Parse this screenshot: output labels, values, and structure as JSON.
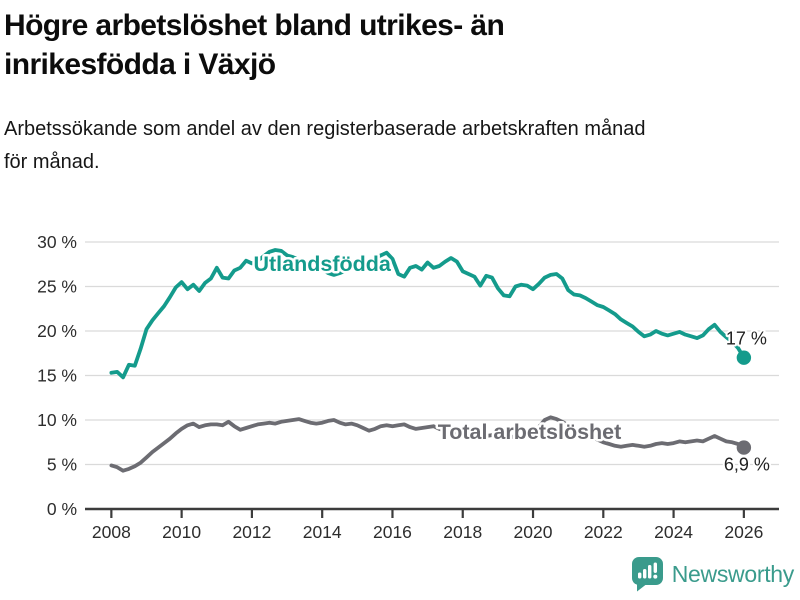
{
  "header": {
    "title_lines": [
      "Högre arbetslöshet bland utrikes- än",
      "inrikesfödda i Växjö"
    ],
    "subtitle_lines": [
      "Arbetssökande som andel av den registerbaserade arbetskraften månad",
      "för månad."
    ]
  },
  "chart_data": {
    "type": "line",
    "title": "Högre arbetslöshet bland utrikes- än inrikesfödda i Växjö",
    "subtitle": "Arbetssökande som andel av den registerbaserade arbetskraften månad för månad.",
    "x_start_year": 2008.0,
    "x_step_years": 0.16667,
    "xlim": [
      2007.25,
      2027.0
    ],
    "ylim": [
      0,
      30
    ],
    "grid": true,
    "x_ticks": [
      {
        "v": 2008,
        "label": "2008"
      },
      {
        "v": 2010,
        "label": "2010"
      },
      {
        "v": 2012,
        "label": "2012"
      },
      {
        "v": 2014,
        "label": "2014"
      },
      {
        "v": 2016,
        "label": "2016"
      },
      {
        "v": 2018,
        "label": "2018"
      },
      {
        "v": 2020,
        "label": "2020"
      },
      {
        "v": 2022,
        "label": "2022"
      },
      {
        "v": 2024,
        "label": "2024"
      },
      {
        "v": 2026,
        "label": "2026"
      }
    ],
    "y_ticks": [
      {
        "v": 0,
        "label": "0 %"
      },
      {
        "v": 5,
        "label": "5 %"
      },
      {
        "v": 10,
        "label": "10 %"
      },
      {
        "v": 15,
        "label": "15 %"
      },
      {
        "v": 20,
        "label": "20 %"
      },
      {
        "v": 25,
        "label": "25 %"
      },
      {
        "v": 30,
        "label": "30 %"
      }
    ],
    "series": [
      {
        "name": "Utlandsfödda",
        "color": "#149b8c",
        "label_anchor": {
          "x": 2014.0,
          "y": 27.4
        },
        "end_label": "17 %",
        "end_label_offset": [
          -18,
          -13
        ],
        "values": [
          15.3,
          15.4,
          14.8,
          16.2,
          16.1,
          18.0,
          20.2,
          21.2,
          22.0,
          22.8,
          23.8,
          24.9,
          25.5,
          24.7,
          25.2,
          24.5,
          25.4,
          25.9,
          27.1,
          26.0,
          25.9,
          26.8,
          27.1,
          27.9,
          27.6,
          27.9,
          28.4,
          28.9,
          29.1,
          29.0,
          28.5,
          28.3,
          28.0,
          27.8,
          27.6,
          27.2,
          27.0,
          26.5,
          26.3,
          26.5,
          26.8,
          27.0,
          27.3,
          27.6,
          27.9,
          28.2,
          28.5,
          28.8,
          28.1,
          26.4,
          26.1,
          27.1,
          27.3,
          26.9,
          27.7,
          27.1,
          27.3,
          27.8,
          28.2,
          27.8,
          26.7,
          26.4,
          26.1,
          25.1,
          26.2,
          26.0,
          24.8,
          24.0,
          23.9,
          25.0,
          25.2,
          25.1,
          24.7,
          25.3,
          26.0,
          26.3,
          26.4,
          25.9,
          24.6,
          24.1,
          24.0,
          23.7,
          23.3,
          22.9,
          22.7,
          22.3,
          21.9,
          21.3,
          20.9,
          20.5,
          19.9,
          19.4,
          19.6,
          20.0,
          19.7,
          19.5,
          19.7,
          19.9,
          19.6,
          19.4,
          19.2,
          19.5,
          20.2,
          20.7,
          19.9,
          19.3,
          18.8,
          18.1,
          17.0
        ]
      },
      {
        "name": "Total arbetslöshet",
        "color": "#6c6c72",
        "label_anchor": {
          "x": 2019.9,
          "y": 8.5
        },
        "end_label": "6,9 %",
        "end_label_offset": [
          -20,
          23
        ],
        "values": [
          4.9,
          4.7,
          4.3,
          4.5,
          4.8,
          5.2,
          5.8,
          6.4,
          6.9,
          7.4,
          7.9,
          8.5,
          9.0,
          9.4,
          9.6,
          9.2,
          9.4,
          9.5,
          9.5,
          9.4,
          9.8,
          9.3,
          8.9,
          9.1,
          9.3,
          9.5,
          9.6,
          9.7,
          9.6,
          9.8,
          9.9,
          10.0,
          10.1,
          9.9,
          9.7,
          9.6,
          9.7,
          9.9,
          10.0,
          9.7,
          9.5,
          9.6,
          9.4,
          9.1,
          8.8,
          9.0,
          9.3,
          9.4,
          9.3,
          9.4,
          9.5,
          9.2,
          9.0,
          9.1,
          9.2,
          9.3,
          9.0,
          8.8,
          8.6,
          8.5,
          8.4,
          8.6,
          8.5,
          8.3,
          8.2,
          8.3,
          8.2,
          8.1,
          8.0,
          8.2,
          8.3,
          8.4,
          8.5,
          9.2,
          10.0,
          10.3,
          10.1,
          9.8,
          9.4,
          9.0,
          8.7,
          8.4,
          8.1,
          7.8,
          7.5,
          7.3,
          7.1,
          7.0,
          7.1,
          7.2,
          7.1,
          7.0,
          7.1,
          7.3,
          7.4,
          7.3,
          7.4,
          7.6,
          7.5,
          7.6,
          7.7,
          7.6,
          7.9,
          8.2,
          7.9,
          7.6,
          7.5,
          7.3,
          6.9
        ]
      }
    ],
    "colors": {
      "grid": "#dadada",
      "axis": "#3c3c3c",
      "tick_text": "#2d2d2d",
      "end_label_text": "#222222",
      "accent_teal": "#149b8c",
      "accent_gray": "#6c6c72"
    }
  },
  "footer": {
    "brand": "Newsworthy"
  }
}
